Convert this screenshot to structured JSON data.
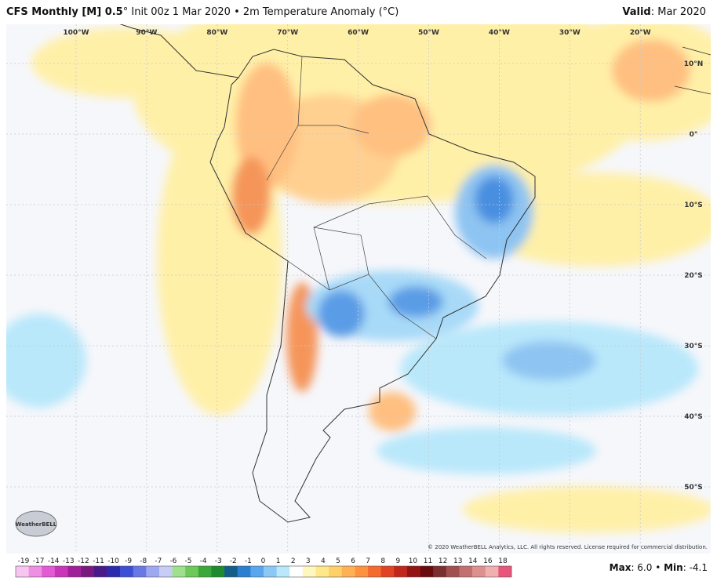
{
  "header": {
    "model": "CFS Monthly [M] 0.5",
    "degree": "°",
    "description": "Init 00z 1 Mar 2020 • 2m Temperature Anomaly (°C)",
    "valid_label": "Valid",
    "valid_value": ": Mar 2020"
  },
  "map": {
    "longitude_labels": [
      "100°W",
      "90°W",
      "80°W",
      "70°W",
      "60°W",
      "50°W",
      "40°W",
      "30°W",
      "20°W"
    ],
    "latitude_labels": [
      "10°N",
      "0°",
      "10°S",
      "20°S",
      "30°S",
      "40°S",
      "50°S"
    ],
    "copyright": "© 2020 WeatherBELL Analytics, LLC. All rights reserved. License required for commercial distribution.",
    "logo": "WeatherBELL"
  },
  "colorbar": {
    "labels": [
      "-19",
      "-17",
      "-14",
      "-13",
      "-12",
      "-11",
      "-10",
      "-9",
      "-8",
      "-7",
      "-6",
      "-5",
      "-4",
      "-3",
      "-2",
      "-1",
      "0",
      "1",
      "2",
      "3",
      "4",
      "5",
      "6",
      "7",
      "8",
      "9",
      "10",
      "11",
      "12",
      "13",
      "14",
      "16",
      "18"
    ],
    "colors": [
      "#f7c6f0",
      "#ee8fe3",
      "#e35ad5",
      "#c934b9",
      "#a0209a",
      "#7a1a80",
      "#4b1a8a",
      "#2b2bb0",
      "#3e4fd6",
      "#6a78e6",
      "#9ea8f0",
      "#c7cdf6",
      "#9fe08f",
      "#6cc95a",
      "#3aa83a",
      "#1f8a30",
      "#145c8a",
      "#2a7fd0",
      "#5aa6ee",
      "#8cc8f6",
      "#b9e8fb",
      "#ffffff",
      "#fff7c0",
      "#ffe88a",
      "#ffcf6a",
      "#ffb255",
      "#ff9240",
      "#f56a2e",
      "#e04424",
      "#c0281c",
      "#941414",
      "#6a0c0c",
      "#7a3030",
      "#a05050",
      "#c27070",
      "#dd9090",
      "#f0b0b0",
      "#e8557a"
    ],
    "max_label": "Max",
    "max_value": ": 6.0",
    "separator": " • ",
    "min_label": "Min",
    "min_value": ": -4.1"
  }
}
